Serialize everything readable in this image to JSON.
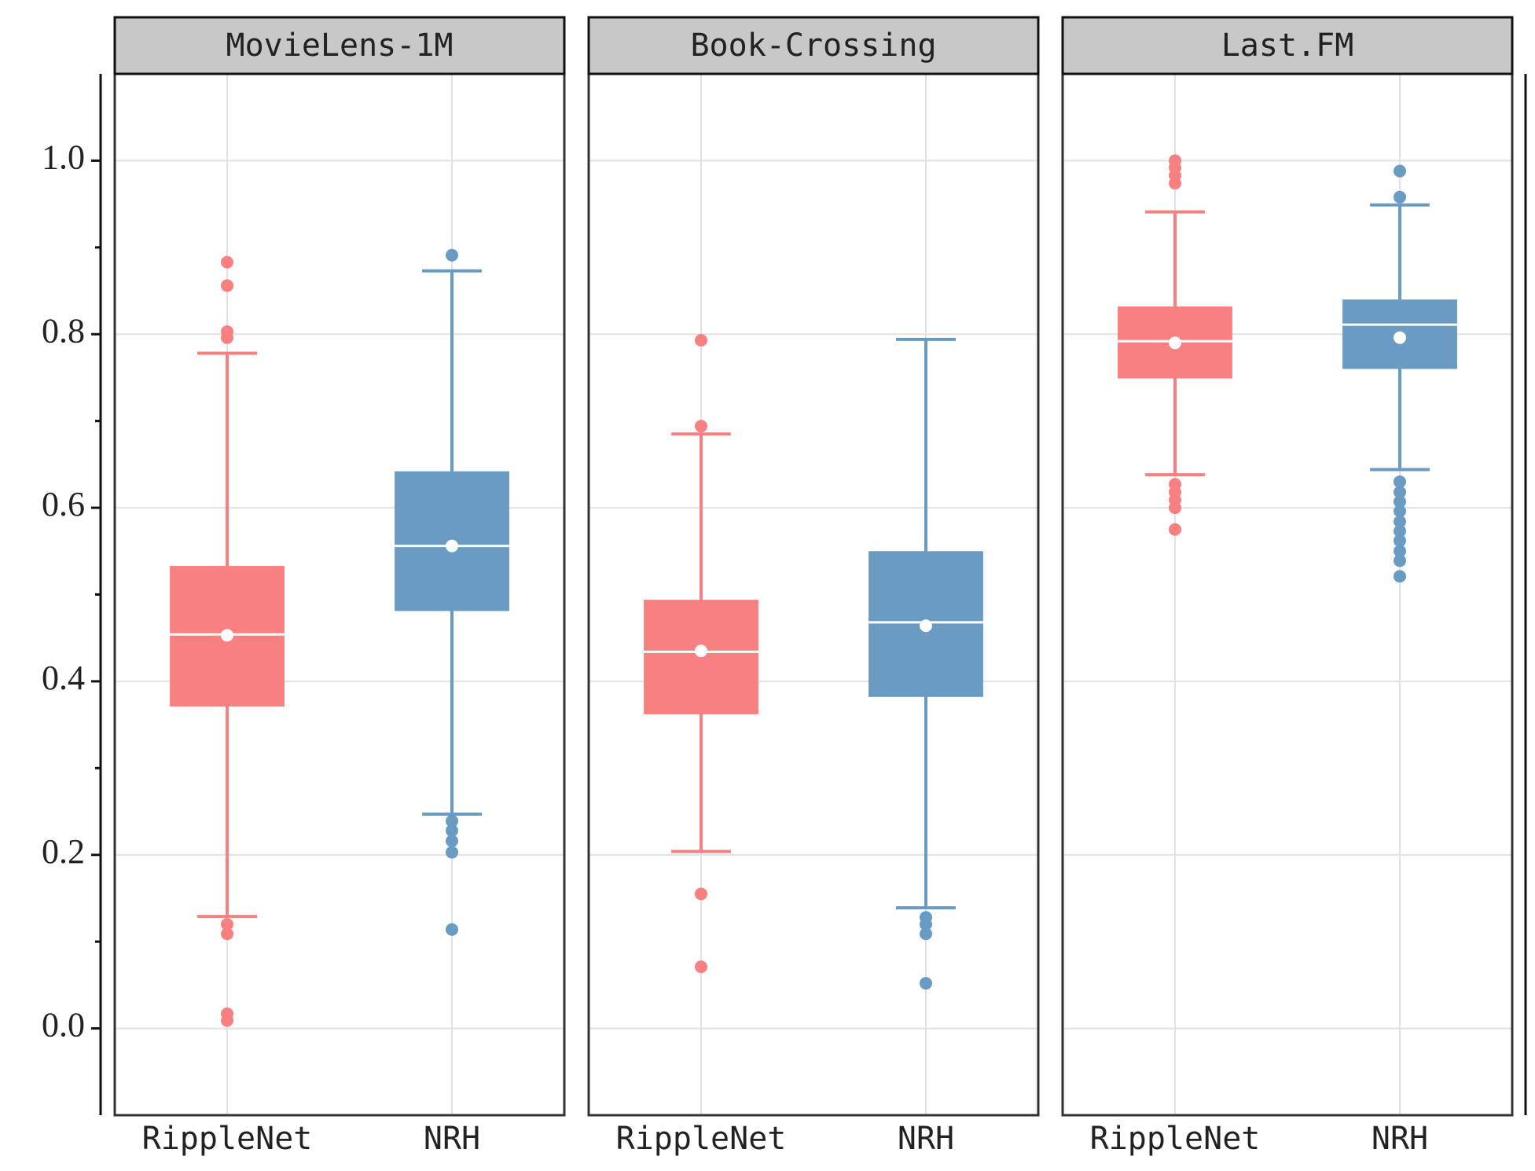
{
  "chart_data": {
    "type": "box",
    "ylim": [
      -0.1,
      1.1
    ],
    "yticks": [
      {
        "value": 0,
        "label": "0.0"
      },
      {
        "value": 0.2,
        "label": "0.2"
      },
      {
        "value": 0.4,
        "label": "0.4"
      },
      {
        "value": 0.6,
        "label": "0.6"
      },
      {
        "value": 0.8,
        "label": "0.8"
      },
      {
        "value": 1,
        "label": "1.0"
      }
    ],
    "minor_yticks": [
      0.1,
      0.3,
      0.5,
      0.7,
      0.9
    ],
    "grid": true,
    "colors": [
      "#f98080",
      "#6a9bc3"
    ],
    "panels": [
      {
        "title": "MovieLens-1M",
        "categories": [
          "RippleNet",
          "NRH"
        ],
        "boxes": [
          {
            "whisker_low": 0.129,
            "q1": 0.371,
            "median": 0.454,
            "mean": 0.453,
            "q3": 0.533,
            "whisker_high": 0.778,
            "outliers": [
              0.883,
              0.856,
              0.803,
              0.796,
              0.12,
              0.109,
              0.017,
              0.009
            ]
          },
          {
            "whisker_low": 0.247,
            "q1": 0.481,
            "median": 0.556,
            "mean": 0.556,
            "q3": 0.642,
            "whisker_high": 0.873,
            "outliers": [
              0.891,
              0.239,
              0.228,
              0.216,
              0.203,
              0.114
            ]
          }
        ]
      },
      {
        "title": "Book-Crossing",
        "categories": [
          "RippleNet",
          "NRH"
        ],
        "boxes": [
          {
            "whisker_low": 0.204,
            "q1": 0.362,
            "median": 0.434,
            "mean": 0.435,
            "q3": 0.494,
            "whisker_high": 0.685,
            "outliers": [
              0.793,
              0.694,
              0.155,
              0.071
            ]
          },
          {
            "whisker_low": 0.139,
            "q1": 0.382,
            "median": 0.468,
            "mean": 0.464,
            "q3": 0.55,
            "whisker_high": 0.794,
            "outliers": [
              0.128,
              0.12,
              0.109,
              0.052
            ]
          }
        ]
      },
      {
        "title": "Last.FM",
        "categories": [
          "RippleNet",
          "NRH"
        ],
        "boxes": [
          {
            "whisker_low": 0.638,
            "q1": 0.749,
            "median": 0.792,
            "mean": 0.79,
            "q3": 0.832,
            "whisker_high": 0.941,
            "outliers": [
              1.0,
              0.992,
              0.983,
              0.974,
              0.627,
              0.618,
              0.609,
              0.6,
              0.575
            ]
          },
          {
            "whisker_low": 0.644,
            "q1": 0.76,
            "median": 0.811,
            "mean": 0.796,
            "q3": 0.84,
            "whisker_high": 0.949,
            "outliers": [
              0.988,
              0.958,
              0.63,
              0.618,
              0.607,
              0.596,
              0.584,
              0.573,
              0.562,
              0.55,
              0.539,
              0.521
            ]
          }
        ]
      }
    ]
  }
}
